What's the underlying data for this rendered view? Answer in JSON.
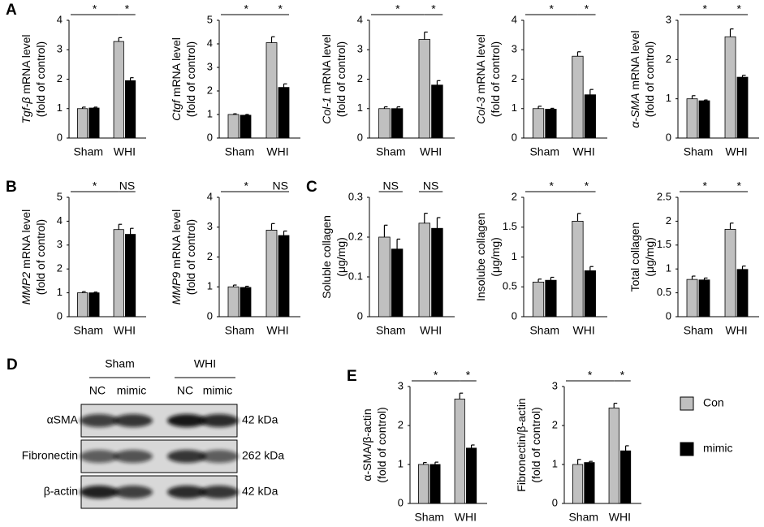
{
  "chart_data": [
    {
      "type": "bar",
      "panel": "A",
      "gene": "Tgf-β",
      "ylabel": [
        "mRNA level",
        "(fold of control)"
      ],
      "categories": [
        "Sham",
        "WHI"
      ],
      "ylim": [
        0,
        4
      ],
      "yticks": [
        0,
        1,
        2,
        3,
        4
      ],
      "significance": [
        "*",
        "*"
      ],
      "series": [
        {
          "name": "Con",
          "color": "#c0c0c0",
          "values": [
            1.0,
            3.28
          ],
          "errors": [
            0.05,
            0.13
          ]
        },
        {
          "name": "mimic",
          "color": "#000000",
          "values": [
            1.02,
            1.95
          ],
          "errors": [
            0.03,
            0.1
          ]
        }
      ]
    },
    {
      "type": "bar",
      "gene": "Ctgf",
      "ylabel": [
        "mRNA level",
        "(fold of control)"
      ],
      "categories": [
        "Sham",
        "WHI"
      ],
      "ylim": [
        0,
        5
      ],
      "yticks": [
        0,
        1,
        2,
        3,
        4,
        5
      ],
      "significance": [
        "*",
        "*"
      ],
      "series": [
        {
          "name": "Con",
          "color": "#c0c0c0",
          "values": [
            1.0,
            4.05
          ],
          "errors": [
            0.03,
            0.25
          ]
        },
        {
          "name": "mimic",
          "color": "#000000",
          "values": [
            0.97,
            2.15
          ],
          "errors": [
            0.03,
            0.15
          ]
        }
      ]
    },
    {
      "type": "bar",
      "gene": "Col-1",
      "ylabel": [
        "mRNA level",
        "(fold of control)"
      ],
      "categories": [
        "Sham",
        "WHI"
      ],
      "ylim": [
        0,
        4
      ],
      "yticks": [
        0,
        1,
        2,
        3,
        4
      ],
      "significance": [
        "*",
        "*"
      ],
      "series": [
        {
          "name": "Con",
          "color": "#c0c0c0",
          "values": [
            1.0,
            3.35
          ],
          "errors": [
            0.06,
            0.25
          ]
        },
        {
          "name": "mimic",
          "color": "#000000",
          "values": [
            1.0,
            1.8
          ],
          "errors": [
            0.06,
            0.15
          ]
        }
      ]
    },
    {
      "type": "bar",
      "gene": "Col-3",
      "ylabel": [
        "mRNA level",
        "(fold of control)"
      ],
      "categories": [
        "Sham",
        "WHI"
      ],
      "ylim": [
        0,
        4
      ],
      "yticks": [
        0,
        1,
        2,
        3,
        4
      ],
      "significance": [
        "*",
        "*"
      ],
      "series": [
        {
          "name": "Con",
          "color": "#c0c0c0",
          "values": [
            1.0,
            2.78
          ],
          "errors": [
            0.08,
            0.15
          ]
        },
        {
          "name": "mimic",
          "color": "#000000",
          "values": [
            0.98,
            1.47
          ],
          "errors": [
            0.03,
            0.18
          ]
        }
      ]
    },
    {
      "type": "bar",
      "gene": "α-SMA",
      "ylabel": [
        "mRNA level",
        "(fold of control)"
      ],
      "categories": [
        "Sham",
        "WHI"
      ],
      "ylim": [
        0,
        3
      ],
      "yticks": [
        0,
        1,
        2,
        3
      ],
      "significance": [
        "*",
        "*"
      ],
      "series": [
        {
          "name": "Con",
          "color": "#c0c0c0",
          "values": [
            1.0,
            2.58
          ],
          "errors": [
            0.08,
            0.2
          ]
        },
        {
          "name": "mimic",
          "color": "#000000",
          "values": [
            0.95,
            1.55
          ],
          "errors": [
            0.02,
            0.05
          ]
        }
      ]
    },
    {
      "type": "bar",
      "panel": "B",
      "gene": "MMP2",
      "ylabel": [
        "mRNA level",
        "(fold of control)"
      ],
      "categories": [
        "Sham",
        "WHI"
      ],
      "ylim": [
        0,
        5
      ],
      "yticks": [
        0,
        1,
        2,
        3,
        4,
        5
      ],
      "significance": [
        "*",
        "NS"
      ],
      "series": [
        {
          "name": "Con",
          "color": "#c0c0c0",
          "values": [
            1.0,
            3.65
          ],
          "errors": [
            0.05,
            0.22
          ]
        },
        {
          "name": "mimic",
          "color": "#000000",
          "values": [
            1.0,
            3.45
          ],
          "errors": [
            0.03,
            0.25
          ]
        }
      ]
    },
    {
      "type": "bar",
      "gene": "MMP9",
      "ylabel": [
        "mRNA level",
        "(fold of control)"
      ],
      "categories": [
        "Sham",
        "WHI"
      ],
      "ylim": [
        0,
        4
      ],
      "yticks": [
        0,
        1,
        2,
        3,
        4
      ],
      "significance": [
        "*",
        "NS"
      ],
      "series": [
        {
          "name": "Con",
          "color": "#c0c0c0",
          "values": [
            1.0,
            2.9
          ],
          "errors": [
            0.06,
            0.22
          ]
        },
        {
          "name": "mimic",
          "color": "#000000",
          "values": [
            0.98,
            2.72
          ],
          "errors": [
            0.04,
            0.15
          ]
        }
      ]
    },
    {
      "type": "bar",
      "panel": "C",
      "ylabel": [
        "Soluble collagen",
        "(μg/mg)"
      ],
      "categories": [
        "Sham",
        "WHI"
      ],
      "ylim": [
        0,
        0.3
      ],
      "yticks": [
        0,
        0.1,
        0.2,
        0.3
      ],
      "significance": [
        "NS",
        "NS"
      ],
      "series": [
        {
          "name": "Con",
          "color": "#c0c0c0",
          "values": [
            0.2,
            0.235
          ],
          "errors": [
            0.03,
            0.025
          ]
        },
        {
          "name": "mimic",
          "color": "#000000",
          "values": [
            0.17,
            0.222
          ],
          "errors": [
            0.025,
            0.027
          ]
        }
      ]
    },
    {
      "type": "bar",
      "ylabel": [
        "Insolube collagen",
        "(μg/mg)"
      ],
      "categories": [
        "Sham",
        "WHI"
      ],
      "ylim": [
        0,
        2
      ],
      "yticks": [
        0,
        0.5,
        1,
        1.5,
        2
      ],
      "significance": [
        "*",
        "*"
      ],
      "series": [
        {
          "name": "Con",
          "color": "#c0c0c0",
          "values": [
            0.58,
            1.6
          ],
          "errors": [
            0.05,
            0.13
          ]
        },
        {
          "name": "mimic",
          "color": "#000000",
          "values": [
            0.61,
            0.77
          ],
          "errors": [
            0.05,
            0.07
          ]
        }
      ]
    },
    {
      "type": "bar",
      "ylabel": [
        "Total collagen",
        "(μg/mg)"
      ],
      "categories": [
        "Sham",
        "WHI"
      ],
      "ylim": [
        0,
        2.5
      ],
      "yticks": [
        0,
        0.5,
        1,
        1.5,
        2,
        2.5
      ],
      "significance": [
        "*",
        "*"
      ],
      "series": [
        {
          "name": "Con",
          "color": "#c0c0c0",
          "values": [
            0.78,
            1.83
          ],
          "errors": [
            0.07,
            0.13
          ]
        },
        {
          "name": "mimic",
          "color": "#000000",
          "values": [
            0.77,
            0.99
          ],
          "errors": [
            0.04,
            0.07
          ]
        }
      ]
    },
    {
      "type": "bar",
      "panel": "E",
      "ylabel": [
        "α-SMA/β-actin",
        "(fold of control)"
      ],
      "categories": [
        "Sham",
        "WHI"
      ],
      "ylim": [
        0,
        3
      ],
      "yticks": [
        0,
        1,
        2,
        3
      ],
      "significance": [
        "*",
        "*"
      ],
      "series": [
        {
          "name": "Con",
          "color": "#c0c0c0",
          "values": [
            1.0,
            2.68
          ],
          "errors": [
            0.05,
            0.15
          ]
        },
        {
          "name": "mimic",
          "color": "#000000",
          "values": [
            1.0,
            1.42
          ],
          "errors": [
            0.06,
            0.08
          ]
        }
      ]
    },
    {
      "type": "bar",
      "ylabel": [
        "Fibronectin/β-actin",
        "(fold of control)"
      ],
      "categories": [
        "Sham",
        "WHI"
      ],
      "ylim": [
        0,
        3
      ],
      "yticks": [
        0,
        1,
        2,
        3
      ],
      "significance": [
        "*",
        "*"
      ],
      "series": [
        {
          "name": "Con",
          "color": "#c0c0c0",
          "values": [
            1.0,
            2.45
          ],
          "errors": [
            0.13,
            0.12
          ]
        },
        {
          "name": "mimic",
          "color": "#000000",
          "values": [
            1.05,
            1.35
          ],
          "errors": [
            0.03,
            0.13
          ]
        }
      ]
    }
  ],
  "blot": {
    "panel": "D",
    "groups": [
      "Sham",
      "WHI"
    ],
    "lanes": [
      "NC",
      "mimic",
      "NC",
      "mimic"
    ],
    "rows": [
      {
        "label": "αSMA",
        "size": "42 kDa"
      },
      {
        "label": "Fibronectin",
        "size": "262 kDa"
      },
      {
        "label": "β-actin",
        "size": "42 kDa"
      }
    ]
  }
}
